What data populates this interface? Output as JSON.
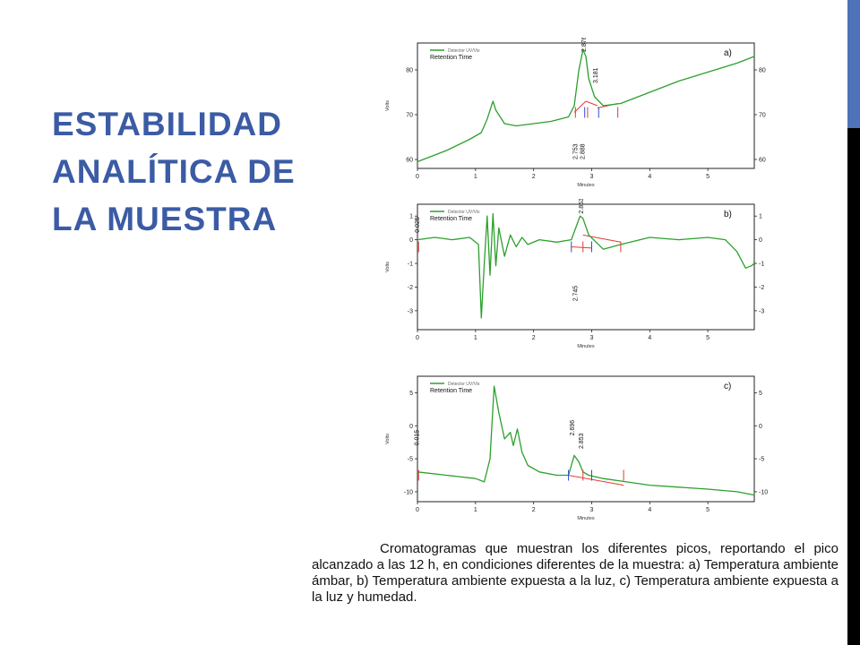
{
  "slide": {
    "title_lines": [
      "ESTABILIDAD",
      "ANALÍTICA DE",
      "LA MUESTRA"
    ],
    "caption": "Cromatogramas que muestran los diferentes picos, reportando el pico alcanzado a las 12 h, en condiciones diferentes de la muestra: a) Temperatura ambiente ámbar, b) Temperatura ambiente expuesta a la luz, c) Temperatura ambiente expuesta a la luz y humedad."
  },
  "colors": {
    "title": "#3b5ba5",
    "trace": "#2ca02c",
    "baseline": "#e03c31",
    "marker": "#2a4fd0",
    "accent_bar": "#4f72b8"
  },
  "chart_data": [
    {
      "type": "line",
      "panel_label": "a)",
      "legend": [
        "Detector UV/Vis",
        "Retention Time"
      ],
      "xlabel": "Minutes",
      "ylabel": "Volts",
      "xlim": [
        0,
        5.8
      ],
      "ylim": [
        58,
        86
      ],
      "xticks": [
        0,
        1,
        2,
        3,
        4,
        5
      ],
      "yticks": [
        60,
        70,
        80
      ],
      "peak_labels": [
        {
          "text": "2.876",
          "x": 2.9,
          "y": 84
        },
        {
          "text": "3.181",
          "x": 3.1,
          "y": 77
        },
        {
          "text": "2.753",
          "x": 2.75,
          "y": 60
        },
        {
          "text": "2.888",
          "x": 2.88,
          "y": 60
        }
      ],
      "series": [
        {
          "x": [
            0,
            0.5,
            0.9,
            1.1,
            1.2,
            1.3,
            1.35,
            1.5,
            1.7,
            2.0,
            2.3,
            2.6,
            2.7,
            2.78,
            2.85,
            2.9,
            2.95,
            3.05,
            3.2,
            3.5,
            4.0,
            4.5,
            5.0,
            5.5,
            5.8
          ],
          "y": [
            59.5,
            62,
            64.5,
            66,
            69,
            73,
            71,
            68,
            67.5,
            68,
            68.5,
            69.5,
            72,
            80,
            84.5,
            83,
            78,
            74,
            72,
            72.5,
            75,
            77.5,
            79.5,
            81.5,
            83
          ]
        }
      ],
      "baselines": [
        {
          "x": [
            2.7,
            2.9
          ],
          "y": [
            70.5,
            73
          ]
        },
        {
          "x": [
            2.9,
            3.1
          ],
          "y": [
            73,
            72
          ]
        },
        {
          "x": [
            3.1,
            3.45
          ],
          "y": [
            71.5,
            72.5
          ]
        }
      ],
      "markers": [
        2.72,
        2.88,
        2.93,
        3.12,
        3.45
      ]
    },
    {
      "type": "line",
      "panel_label": "b)",
      "legend": [
        "Detector UV/Vis",
        "Retention Time"
      ],
      "xlabel": "Minutes",
      "ylabel": "Volts",
      "xlim": [
        0,
        5.8
      ],
      "ylim": [
        -3.8,
        1.5
      ],
      "xticks": [
        0,
        1,
        2,
        3,
        4,
        5
      ],
      "yticks": [
        -3,
        -2,
        -1,
        0,
        1
      ],
      "peak_labels": [
        {
          "text": "0.025",
          "x": 0.03,
          "y": 0.3
        },
        {
          "text": "2.853",
          "x": 2.85,
          "y": 1.1
        },
        {
          "text": "2.745",
          "x": 2.75,
          "y": -2.6
        }
      ],
      "series": [
        {
          "x": [
            0,
            0.3,
            0.6,
            0.9,
            1.05,
            1.1,
            1.15,
            1.2,
            1.25,
            1.3,
            1.35,
            1.4,
            1.5,
            1.6,
            1.7,
            1.8,
            1.9,
            2.1,
            2.4,
            2.65,
            2.8,
            2.85,
            2.95,
            3.2,
            3.5,
            4.0,
            4.5,
            5.0,
            5.3,
            5.5,
            5.65,
            5.75,
            5.8
          ],
          "y": [
            0,
            0.1,
            0,
            0.1,
            -0.2,
            -3.3,
            -1,
            1,
            -1.5,
            1.1,
            -1.1,
            0.5,
            -0.7,
            0.2,
            -0.3,
            0.1,
            -0.2,
            0,
            -0.1,
            0,
            1,
            0.9,
            0.2,
            -0.4,
            -0.2,
            0.1,
            0,
            0.1,
            0,
            -0.5,
            -1.2,
            -1.1,
            -1
          ]
        }
      ],
      "baselines": [
        {
          "x": [
            2.65,
            3.0
          ],
          "y": [
            -0.3,
            -0.35
          ]
        },
        {
          "x": [
            2.85,
            3.5
          ],
          "y": [
            0.2,
            -0.1
          ]
        }
      ],
      "markers": [
        0.02,
        2.65,
        2.85,
        3.0,
        3.5
      ]
    },
    {
      "type": "line",
      "panel_label": "c)",
      "legend": [
        "Detector UV/Vis",
        "Retention Time"
      ],
      "xlabel": "Minutes",
      "ylabel": "Volts",
      "xlim": [
        0,
        5.8
      ],
      "ylim": [
        -11.5,
        7.5
      ],
      "xticks": [
        0,
        1,
        2,
        3,
        4,
        5
      ],
      "yticks": [
        -10,
        -5,
        0,
        5
      ],
      "peak_labels": [
        {
          "text": "0.015",
          "x": 0.02,
          "y": -3
        },
        {
          "text": "2.696",
          "x": 2.7,
          "y": -1.5
        },
        {
          "text": "2.853",
          "x": 2.85,
          "y": -3.5
        }
      ],
      "series": [
        {
          "x": [
            0,
            0.5,
            1.0,
            1.15,
            1.25,
            1.32,
            1.4,
            1.5,
            1.6,
            1.65,
            1.72,
            1.8,
            1.9,
            2.1,
            2.4,
            2.6,
            2.7,
            2.78,
            2.85,
            2.95,
            3.2,
            3.6,
            4.0,
            4.5,
            5.0,
            5.5,
            5.8
          ],
          "y": [
            -7,
            -7.5,
            -8,
            -8.5,
            -5,
            6,
            2,
            -2,
            -1,
            -3,
            -0.5,
            -4,
            -6,
            -7,
            -7.5,
            -7.5,
            -4.5,
            -5.5,
            -7,
            -7.5,
            -8,
            -8.5,
            -9,
            -9.3,
            -9.6,
            -10,
            -10.5
          ]
        }
      ],
      "baselines": [
        {
          "x": [
            2.6,
            3.55
          ],
          "y": [
            -7.5,
            -9
          ]
        }
      ],
      "markers": [
        0.02,
        2.6,
        2.85,
        3.0,
        3.55
      ]
    }
  ]
}
